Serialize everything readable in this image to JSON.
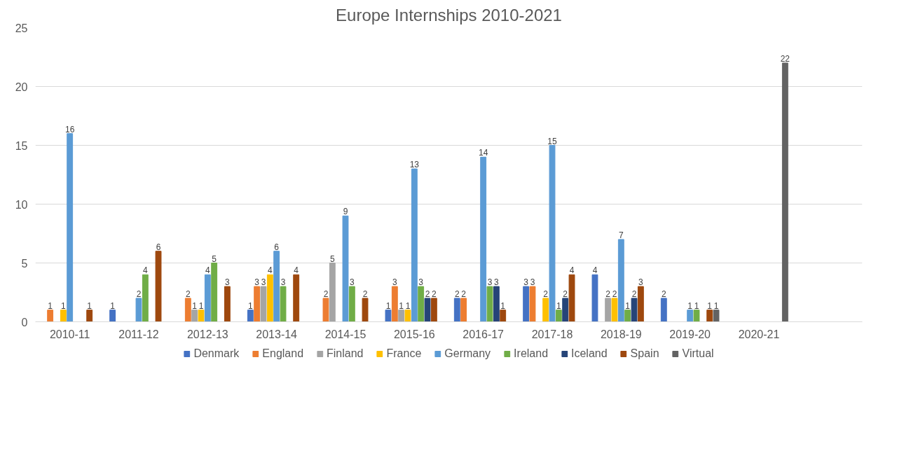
{
  "chart_data": {
    "type": "bar",
    "title": "Europe Internships 2010-2021",
    "categories": [
      "2010-11",
      "2011-12",
      "2012-13",
      "2013-14",
      "2014-15",
      "2015-16",
      "2016-17",
      "2017-18",
      "2018-19",
      "2019-20",
      "2020-21",
      null
    ],
    "series": [
      {
        "name": "Denmark",
        "color": "#4472c4",
        "values": [
          null,
          1,
          null,
          1,
          null,
          1,
          2,
          3,
          4,
          2,
          null,
          null
        ]
      },
      {
        "name": "England",
        "color": "#ed7d31",
        "values": [
          1,
          null,
          2,
          3,
          2,
          3,
          2,
          3,
          null,
          null,
          null,
          null
        ]
      },
      {
        "name": "Finland",
        "color": "#a5a5a5",
        "values": [
          null,
          null,
          1,
          3,
          5,
          1,
          null,
          null,
          2,
          null,
          null,
          null
        ]
      },
      {
        "name": "France",
        "color": "#ffc000",
        "values": [
          1,
          null,
          1,
          4,
          null,
          1,
          null,
          2,
          2,
          null,
          null,
          null
        ]
      },
      {
        "name": "Germany",
        "color": "#5b9bd5",
        "values": [
          16,
          2,
          4,
          6,
          9,
          13,
          14,
          15,
          7,
          1,
          null,
          null
        ]
      },
      {
        "name": "Ireland",
        "color": "#70ad47",
        "values": [
          null,
          4,
          5,
          3,
          3,
          3,
          3,
          1,
          1,
          1,
          null,
          null
        ]
      },
      {
        "name": "Iceland",
        "color": "#264478",
        "values": [
          null,
          null,
          null,
          null,
          null,
          2,
          3,
          2,
          2,
          null,
          null,
          null
        ]
      },
      {
        "name": "Spain",
        "color": "#9e480e",
        "values": [
          1,
          6,
          3,
          4,
          2,
          2,
          1,
          4,
          3,
          1,
          null,
          null
        ]
      },
      {
        "name": "Virtual",
        "color": "#636363",
        "values": [
          null,
          null,
          null,
          null,
          null,
          null,
          null,
          null,
          null,
          1,
          22,
          null
        ]
      }
    ],
    "ylim": [
      0,
      25
    ],
    "yticks": [
      0,
      5,
      10,
      15,
      20,
      25
    ],
    "grid": "y",
    "legend": "bottom",
    "data_labels": true
  }
}
